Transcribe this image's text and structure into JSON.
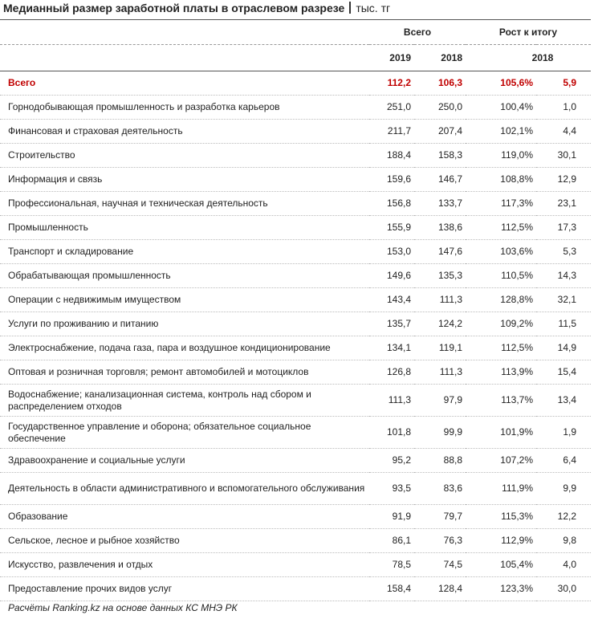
{
  "header": {
    "title": "Медианный размер заработной платы в отраслевом разрезе",
    "unit": "тыс. тг"
  },
  "table": {
    "group_headers": [
      "Всего",
      "Рост к итогу"
    ],
    "column_headers": [
      "2019",
      "2018",
      "2018"
    ],
    "rows": [
      [
        "Всего",
        "112,2",
        "106,3",
        "105,6%",
        "5,9"
      ],
      [
        "Горнодобывающая промышленность и разработка карьеров",
        "251,0",
        "250,0",
        "100,4%",
        "1,0"
      ],
      [
        "Финансовая и страховая деятельность",
        "211,7",
        "207,4",
        "102,1%",
        "4,4"
      ],
      [
        "Строительство",
        "188,4",
        "158,3",
        "119,0%",
        "30,1"
      ],
      [
        "Информация и связь",
        "159,6",
        "146,7",
        "108,8%",
        "12,9"
      ],
      [
        "Профессиональная, научная и техническая деятельность",
        "156,8",
        "133,7",
        "117,3%",
        "23,1"
      ],
      [
        "Промышленность",
        "155,9",
        "138,6",
        "112,5%",
        "17,3"
      ],
      [
        "Транспорт и складирование",
        "153,0",
        "147,6",
        "103,6%",
        "5,3"
      ],
      [
        "Обрабатывающая промышленность",
        "149,6",
        "135,3",
        "110,5%",
        "14,3"
      ],
      [
        "Операции с недвижимым имуществом",
        "143,4",
        "111,3",
        "128,8%",
        "32,1"
      ],
      [
        "Услуги по проживанию и питанию",
        "135,7",
        "124,2",
        "109,2%",
        "11,5"
      ],
      [
        "Электроснабжение, подача газа, пара и воздушное кондиционирование",
        "134,1",
        "119,1",
        "112,5%",
        "14,9"
      ],
      [
        "Оптовая и розничная торговля; ремонт автомобилей и мотоциклов",
        "126,8",
        "111,3",
        "113,9%",
        "15,4"
      ],
      [
        "Водоснабжение; канализационная система, контроль над сбором и распределением отходов",
        "111,3",
        "97,9",
        "113,7%",
        "13,4"
      ],
      [
        "Государственное управление и оборона; обязательное социальное обеспечение",
        "101,8",
        "99,9",
        "101,9%",
        "1,9"
      ],
      [
        "Здравоохранение и социальные услуги",
        "95,2",
        "88,8",
        "107,2%",
        "6,4"
      ],
      [
        "Деятельность в области административного и вспомогательного обслуживания",
        "93,5",
        "83,6",
        "111,9%",
        "9,9"
      ],
      [
        "Образование",
        "91,9",
        "79,7",
        "115,3%",
        "12,2"
      ],
      [
        "Сельское, лесное и рыбное хозяйство",
        "86,1",
        "76,3",
        "112,9%",
        "9,8"
      ],
      [
        "Искусство, развлечения и отдых",
        "78,5",
        "74,5",
        "105,4%",
        "4,0"
      ],
      [
        "Предоставление прочих видов услуг",
        "158,4",
        "128,4",
        "123,3%",
        "30,0"
      ]
    ]
  },
  "footer": {
    "note": "Расчёты Ranking.kz на основе данных КС МНЭ РК"
  }
}
